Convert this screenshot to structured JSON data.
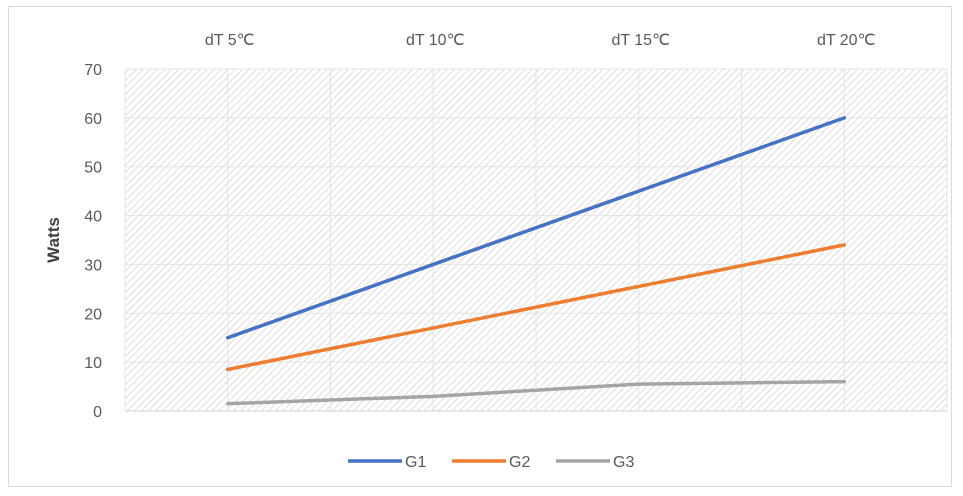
{
  "chart_data": {
    "type": "line",
    "categories": [
      "dT 5℃",
      "dT 10℃",
      "dT 15℃",
      "dT 20℃"
    ],
    "series": [
      {
        "name": "G1",
        "color": "#4472c4",
        "values": [
          15,
          30,
          45,
          60
        ]
      },
      {
        "name": "G2",
        "color": "#ed7d31",
        "values": [
          8.5,
          17,
          25.5,
          34
        ]
      },
      {
        "name": "G3",
        "color": "#a5a5a5",
        "values": [
          1.5,
          3,
          5.5,
          6
        ]
      }
    ],
    "title": "",
    "xlabel": "",
    "ylabel": "Watts",
    "ylim": [
      0,
      70
    ],
    "yticks": [
      0,
      10,
      20,
      30,
      40,
      50,
      60,
      70
    ],
    "grid": true,
    "category_axis_position": "top",
    "plot_fill": "diagonal-hatch",
    "legend_position": "bottom"
  }
}
